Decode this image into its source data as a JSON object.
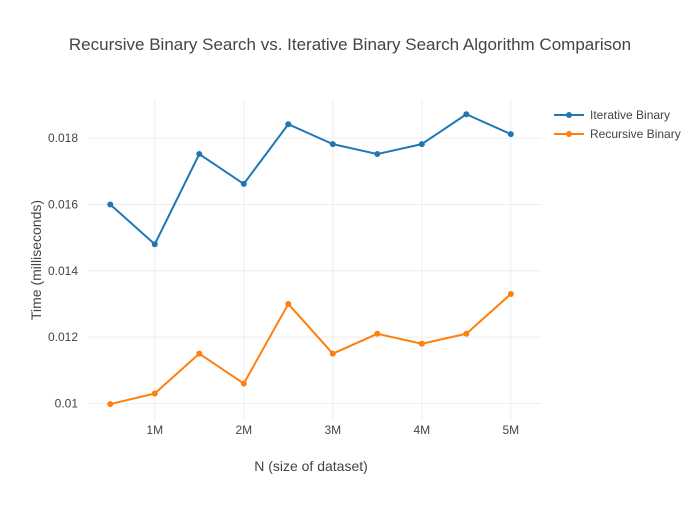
{
  "chart_data": {
    "type": "line",
    "title": "Recursive Binary Search vs. Iterative Binary Search Algorithm Comparison",
    "xlabel": "N (size of dataset)",
    "ylabel": "Time (milliseconds)",
    "x": [
      500000,
      1000000,
      1500000,
      2000000,
      2500000,
      3000000,
      3500000,
      4000000,
      4500000,
      5000000
    ],
    "x_ticks": [
      {
        "value": 1000000,
        "label": "1M"
      },
      {
        "value": 2000000,
        "label": "2M"
      },
      {
        "value": 3000000,
        "label": "3M"
      },
      {
        "value": 4000000,
        "label": "4M"
      },
      {
        "value": 5000000,
        "label": "5M"
      }
    ],
    "y_ticks": [
      {
        "value": 0.01,
        "label": "0.01"
      },
      {
        "value": 0.012,
        "label": "0.012"
      },
      {
        "value": 0.014,
        "label": "0.014"
      },
      {
        "value": 0.016,
        "label": "0.016"
      },
      {
        "value": 0.018,
        "label": "0.018"
      }
    ],
    "xlim": [
      250000,
      5350000
    ],
    "ylim": [
      0.0095,
      0.01915
    ],
    "grid": true,
    "legend_position": "top-right",
    "series": [
      {
        "name": "Iterative Binary",
        "color": "#1f77b4",
        "values": [
          0.016,
          0.0148,
          0.01752,
          0.01662,
          0.01842,
          0.01782,
          0.01752,
          0.01782,
          0.01872,
          0.01812
        ]
      },
      {
        "name": "Recursive Binary",
        "color": "#ff7f0e",
        "values": [
          0.00998,
          0.0103,
          0.0115,
          0.0106,
          0.013,
          0.0115,
          0.0121,
          0.0118,
          0.0121,
          0.0133
        ]
      }
    ]
  }
}
